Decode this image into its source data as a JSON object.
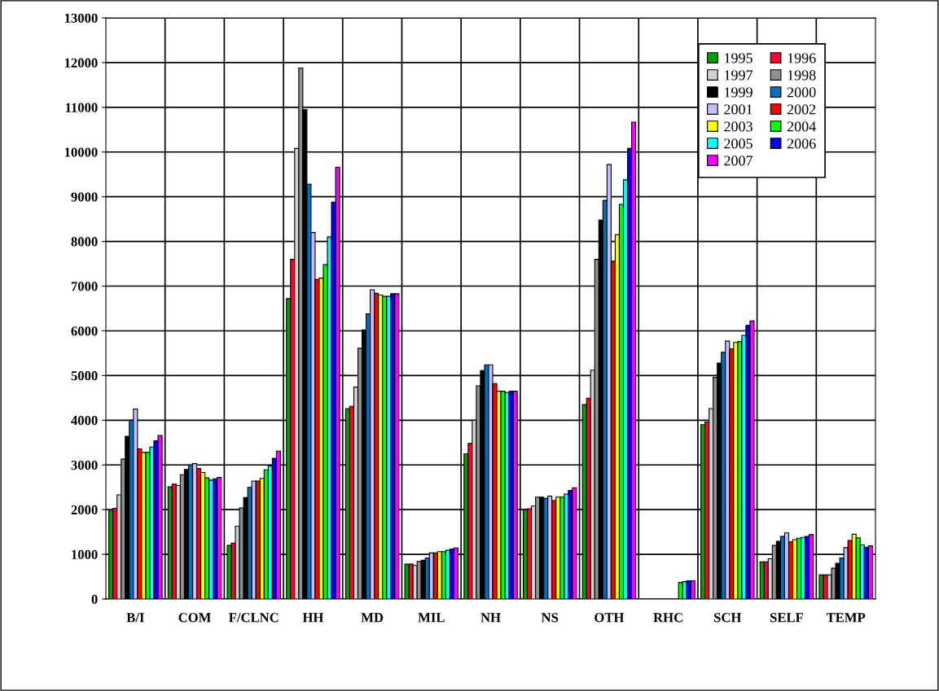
{
  "chart_data": {
    "type": "bar",
    "categories": [
      "B/I",
      "COM",
      "F/CLNC",
      "HH",
      "MD",
      "MIL",
      "NH",
      "NS",
      "OTH",
      "RHC",
      "SCH",
      "SELF",
      "TEMP"
    ],
    "ylim": [
      0,
      13000
    ],
    "yticks": [
      0,
      1000,
      2000,
      3000,
      4000,
      5000,
      6000,
      7000,
      8000,
      9000,
      10000,
      11000,
      12000,
      13000
    ],
    "grid": true,
    "legend": "top right",
    "series": [
      {
        "name": "1995",
        "color": "#00a000",
        "values": [
          1990,
          2510,
          1200,
          6720,
          4260,
          780,
          3250,
          2000,
          4350,
          null,
          3900,
          830,
          540
        ]
      },
      {
        "name": "1996",
        "color": "#ff0030",
        "values": [
          2030,
          2570,
          1250,
          7600,
          4310,
          780,
          3480,
          2020,
          4490,
          null,
          3960,
          830,
          540
        ]
      },
      {
        "name": "1997",
        "color": "#d0d0d0",
        "values": [
          2330,
          2540,
          1630,
          10080,
          4740,
          750,
          4000,
          2080,
          5120,
          null,
          4260,
          900,
          540
        ]
      },
      {
        "name": "1998",
        "color": "#909090",
        "values": [
          3130,
          2780,
          2040,
          11880,
          5610,
          840,
          4770,
          2280,
          7600,
          null,
          4960,
          1200,
          690
        ]
      },
      {
        "name": "1999",
        "color": "#000000",
        "values": [
          3640,
          2900,
          2270,
          10950,
          6020,
          870,
          5110,
          2280,
          8480,
          null,
          5280,
          1290,
          800
        ]
      },
      {
        "name": "2000",
        "color": "#0070c0",
        "values": [
          4000,
          3000,
          2500,
          9280,
          6380,
          920,
          5240,
          2250,
          8920,
          null,
          5520,
          1400,
          920
        ]
      },
      {
        "name": "2001",
        "color": "#c0c0ff",
        "values": [
          4250,
          3030,
          2640,
          8200,
          6920,
          1030,
          5240,
          2300,
          9720,
          null,
          5770,
          1480,
          1150
        ]
      },
      {
        "name": "2002",
        "color": "#ff0000",
        "values": [
          3360,
          2920,
          2640,
          7150,
          6840,
          1030,
          4820,
          2200,
          7560,
          null,
          5600,
          1280,
          1310
        ]
      },
      {
        "name": "2003",
        "color": "#ffff00",
        "values": [
          3280,
          2830,
          2700,
          7180,
          6800,
          1060,
          4650,
          2280,
          8150,
          null,
          5740,
          1330,
          1450
        ]
      },
      {
        "name": "2004",
        "color": "#00ff00",
        "values": [
          3280,
          2710,
          2890,
          7480,
          6770,
          1060,
          4650,
          2280,
          8830,
          370,
          5760,
          1360,
          1370
        ]
      },
      {
        "name": "2005",
        "color": "#00ffff",
        "values": [
          3400,
          2660,
          2980,
          8100,
          6770,
          1090,
          4620,
          2350,
          9380,
          390,
          5900,
          1380,
          1210
        ]
      },
      {
        "name": "2006",
        "color": "#0000ff",
        "values": [
          3540,
          2690,
          3150,
          8880,
          6830,
          1120,
          4650,
          2430,
          10080,
          410,
          6120,
          1400,
          1160
        ]
      },
      {
        "name": "2007",
        "color": "#ff00ff",
        "values": [
          3660,
          2720,
          3310,
          9660,
          6830,
          1140,
          4650,
          2490,
          10670,
          410,
          6220,
          1440,
          1190
        ]
      }
    ]
  }
}
